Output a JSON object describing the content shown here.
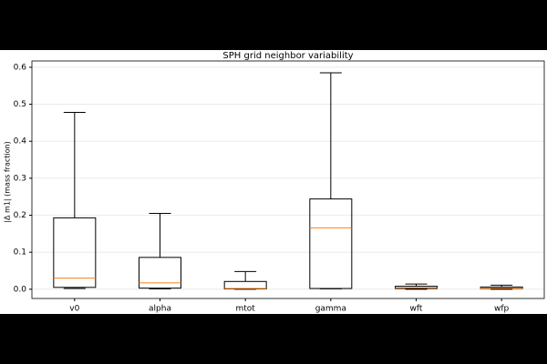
{
  "chart_data": {
    "type": "box",
    "title": "SPH grid neighbor variability",
    "ylabel": "|Δ m1| (mass fraction)",
    "categories": [
      "v0",
      "alpha",
      "mtot",
      "gamma",
      "wft",
      "wfp"
    ],
    "min": [
      0.002,
      0.001,
      0,
      0.001,
      0,
      0
    ],
    "q1": [
      0.005,
      0.003,
      0.001,
      0.002,
      0.002,
      0.002
    ],
    "median": [
      0.03,
      0.017,
      0.002,
      0.166,
      0.004,
      0.003
    ],
    "q3": [
      0.193,
      0.086,
      0.021,
      0.244,
      0.008,
      0.006
    ],
    "max": [
      0.478,
      0.205,
      0.048,
      0.585,
      0.014,
      0.011
    ],
    "color": "#000000",
    "median_color": "#ff7f0e",
    "ylim": [
      -0.025,
      0.617
    ],
    "yticks": [
      {
        "value": 0,
        "label": "0.0"
      },
      0.1,
      0.2,
      0.3,
      0.4,
      0.5,
      0.6
    ],
    "grid": true
  }
}
